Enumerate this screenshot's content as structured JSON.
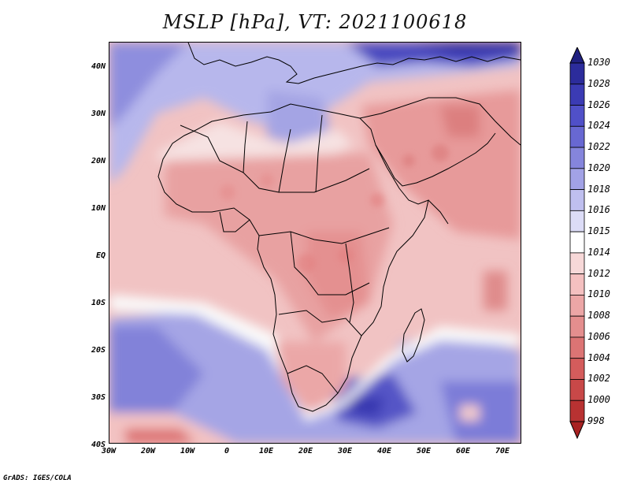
{
  "title": "MSLP [hPa], VT: 2021100618",
  "footer": "GrADS: IGES/COLA",
  "map": {
    "projection": "latlon",
    "lat_labels": [
      "40N",
      "30N",
      "20N",
      "10N",
      "EQ",
      "10S",
      "20S",
      "30S",
      "40S"
    ],
    "lon_labels": [
      "30W",
      "20W",
      "10W",
      "0",
      "10E",
      "20E",
      "30E",
      "40E",
      "50E",
      "60E",
      "70E"
    ]
  },
  "colorbar": {
    "labels": [
      "1030",
      "1028",
      "1026",
      "1024",
      "1022",
      "1020",
      "1018",
      "1016",
      "1015",
      "1014",
      "1012",
      "1010",
      "1008",
      "1006",
      "1004",
      "1002",
      "1000",
      "998"
    ],
    "colors": [
      "#202080",
      "#2c2c9c",
      "#3b3bb4",
      "#5050c8",
      "#6868d2",
      "#8585dc",
      "#a2a2e6",
      "#bfbfef",
      "#dcdcf7",
      "#ffffff",
      "#f7d8d8",
      "#f4c0c0",
      "#eca6a6",
      "#e48e8e",
      "#dc7474",
      "#d45c5c",
      "#c84848",
      "#b83232",
      "#a82222"
    ]
  },
  "chart_data": {
    "type": "heatmap",
    "title": "MSLP [hPa], VT: 2021100618",
    "variable": "MSLP",
    "units": "hPa",
    "valid_time": "2021100618",
    "x_range": [
      "30W",
      "75E"
    ],
    "y_range": [
      "40S",
      "45N"
    ],
    "levels": [
      998,
      1000,
      1002,
      1004,
      1006,
      1008,
      1010,
      1012,
      1014,
      1015,
      1016,
      1018,
      1020,
      1022,
      1024,
      1026,
      1028,
      1030
    ]
  }
}
